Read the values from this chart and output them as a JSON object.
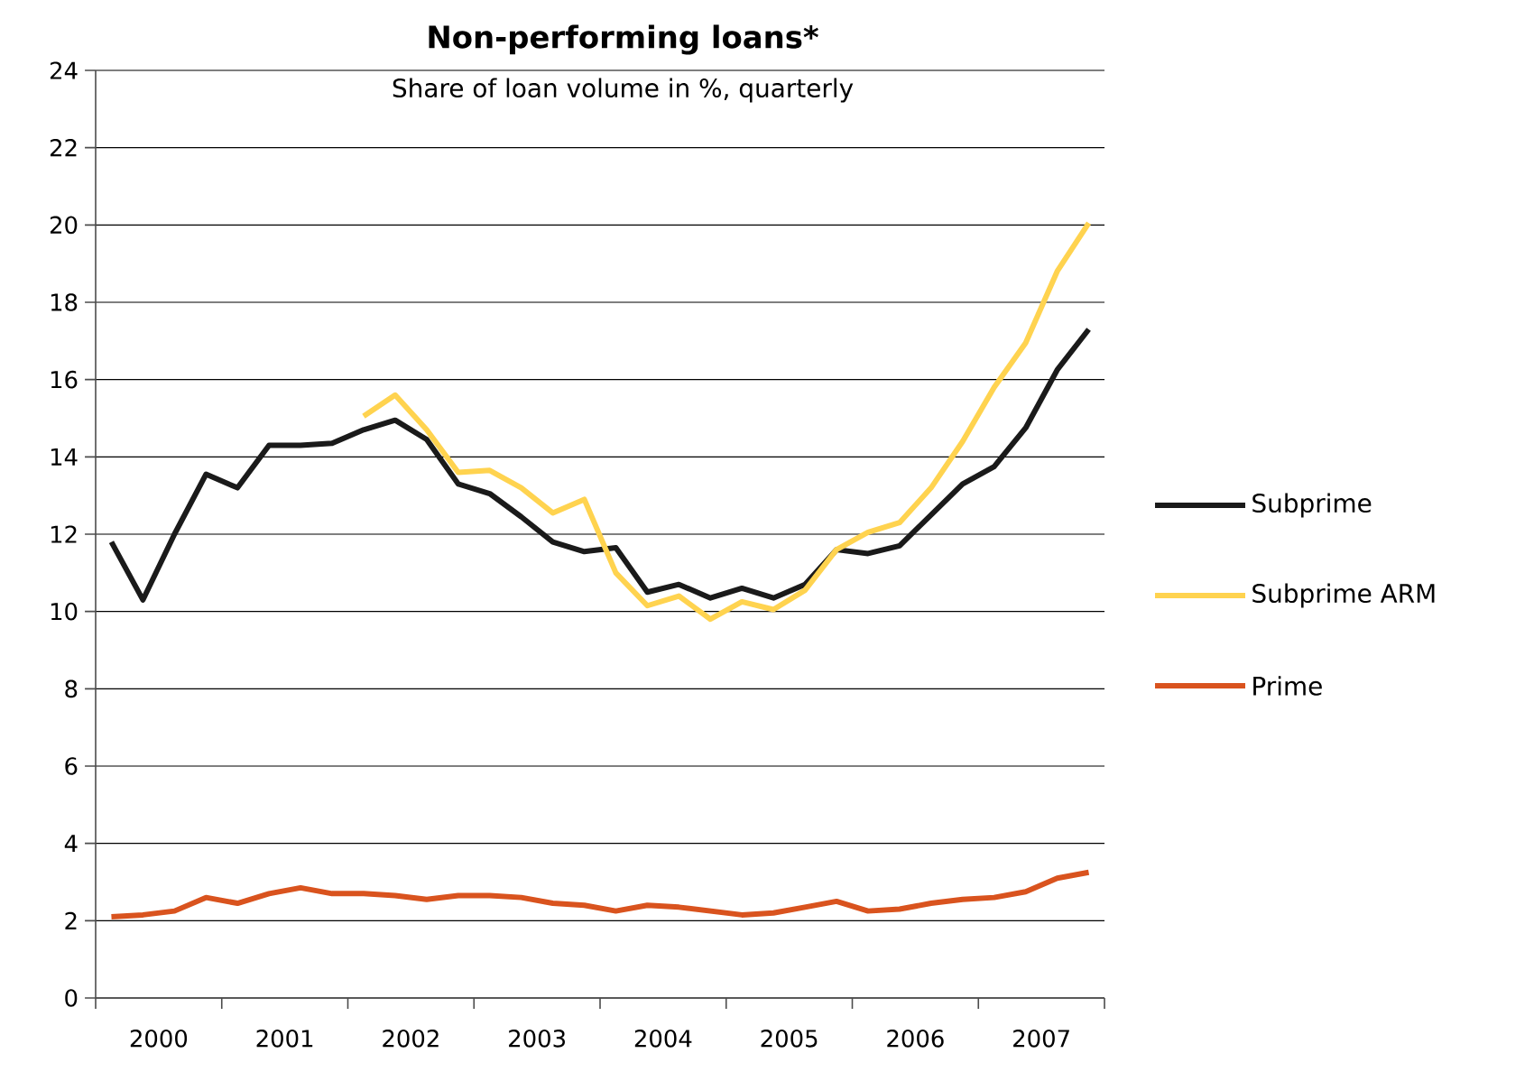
{
  "chart_data": {
    "type": "line",
    "title": "Non-performing loans*",
    "subtitle": "Share of loan volume in %, quarterly",
    "x": [
      2000.125,
      2000.375,
      2000.625,
      2000.875,
      2001.125,
      2001.375,
      2001.625,
      2001.875,
      2002.125,
      2002.375,
      2002.625,
      2002.875,
      2003.125,
      2003.375,
      2003.625,
      2003.875,
      2004.125,
      2004.375,
      2004.625,
      2004.875,
      2005.125,
      2005.375,
      2005.625,
      2005.875,
      2006.125,
      2006.375,
      2006.625,
      2006.875,
      2007.125,
      2007.375,
      2007.625,
      2007.875
    ],
    "series": [
      {
        "name": "Subprime",
        "color": "#1a1a1a",
        "values": [
          11.8,
          10.3,
          12.0,
          13.55,
          13.2,
          14.3,
          14.3,
          14.35,
          14.7,
          14.95,
          14.45,
          13.3,
          13.05,
          12.45,
          11.8,
          11.55,
          11.65,
          10.5,
          10.7,
          10.35,
          10.6,
          10.35,
          10.7,
          11.6,
          11.5,
          11.7,
          12.5,
          13.3,
          13.75,
          14.75,
          16.25,
          17.3
        ]
      },
      {
        "name": "Subprime ARM",
        "color": "#ffd34f",
        "values": [
          null,
          null,
          null,
          null,
          null,
          null,
          null,
          null,
          15.05,
          15.6,
          14.7,
          13.6,
          13.65,
          13.2,
          12.55,
          12.9,
          11.0,
          10.15,
          10.4,
          9.8,
          10.25,
          10.05,
          10.55,
          11.6,
          12.05,
          12.3,
          13.2,
          14.4,
          15.8,
          16.95,
          18.8,
          20.05
        ]
      },
      {
        "name": "Prime",
        "color": "#d9531e",
        "values": [
          2.1,
          2.15,
          2.25,
          2.6,
          2.45,
          2.7,
          2.85,
          2.7,
          2.7,
          2.65,
          2.55,
          2.65,
          2.65,
          2.6,
          2.45,
          2.4,
          2.25,
          2.4,
          2.35,
          2.25,
          2.15,
          2.2,
          2.35,
          2.5,
          2.25,
          2.3,
          2.45,
          2.55,
          2.6,
          2.75,
          3.1,
          3.25
        ]
      }
    ],
    "xlim": [
      2000,
      2008
    ],
    "xticks": [
      {
        "value": 2000,
        "label": null
      },
      {
        "value": 2001,
        "label": null
      },
      {
        "value": 2002,
        "label": null
      },
      {
        "value": 2003,
        "label": null
      },
      {
        "value": 2004,
        "label": null
      },
      {
        "value": 2005,
        "label": null
      },
      {
        "value": 2006,
        "label": null
      },
      {
        "value": 2007,
        "label": null
      },
      {
        "value": 2008,
        "label": null
      },
      {
        "value": 2000.5,
        "label": "2000"
      },
      {
        "value": 2001.5,
        "label": "2001"
      },
      {
        "value": 2002.5,
        "label": "2002"
      },
      {
        "value": 2003.5,
        "label": "2003"
      },
      {
        "value": 2004.5,
        "label": "2004"
      },
      {
        "value": 2005.5,
        "label": "2005"
      },
      {
        "value": 2006.5,
        "label": "2006"
      },
      {
        "value": 2007.5,
        "label": "2007"
      }
    ],
    "ylim": [
      0,
      24
    ],
    "yticks": [
      0,
      2,
      4,
      6,
      8,
      10,
      12,
      14,
      16,
      18,
      20,
      22,
      24
    ],
    "grid": "y",
    "legend": "right",
    "marker": "none",
    "line_style": "solid"
  }
}
